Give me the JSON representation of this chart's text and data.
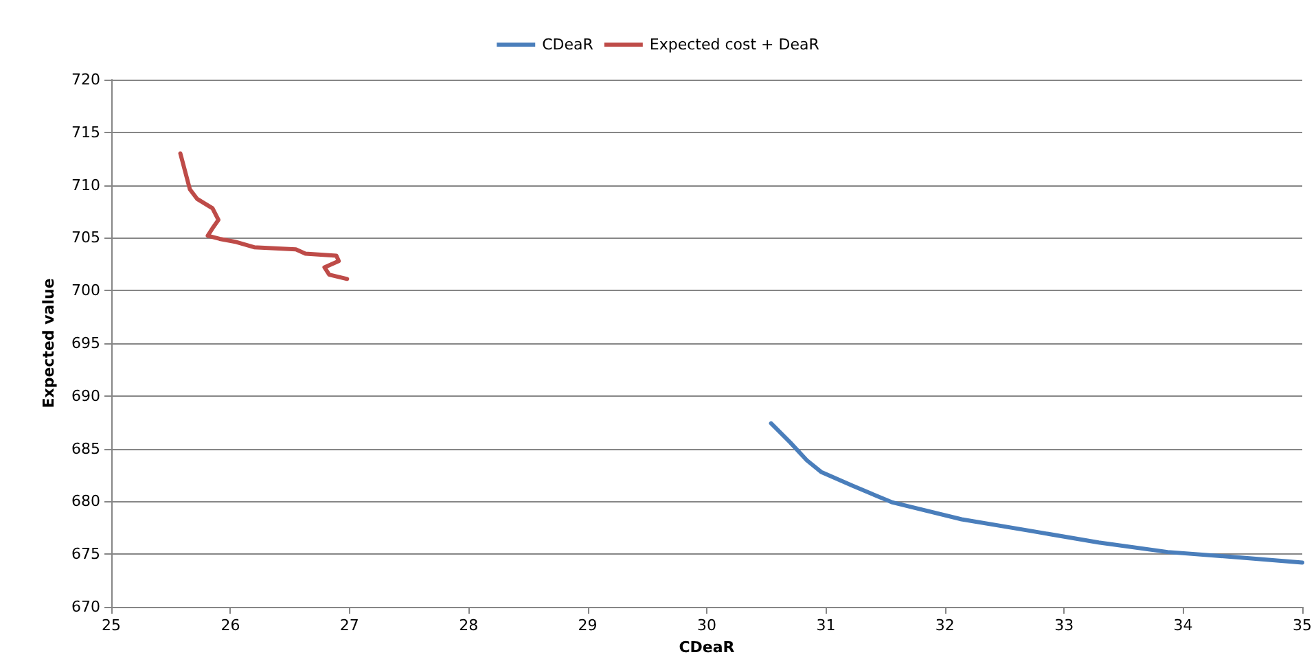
{
  "chart_data": {
    "type": "line",
    "xlabel": "CDeaR",
    "ylabel": "Expected value",
    "legend": "top",
    "grid": "y",
    "marker": "none",
    "line_style": "solid",
    "xlim": [
      25,
      35
    ],
    "xticks": [
      25,
      26,
      27,
      28,
      29,
      30,
      31,
      32,
      33,
      34,
      35
    ],
    "ylim": [
      670,
      720
    ],
    "yticks": [
      670,
      675,
      680,
      685,
      690,
      695,
      700,
      705,
      710,
      715,
      720
    ],
    "series": [
      {
        "name": "CDeaR",
        "color": "#4a7ebb",
        "x": [
          30.54,
          30.7,
          30.84,
          30.96,
          31.22,
          31.56,
          32.14,
          32.72,
          33.29,
          33.87,
          34.45,
          35.0
        ],
        "values": [
          687.4,
          685.6,
          683.9,
          682.8,
          681.5,
          679.9,
          678.3,
          677.2,
          676.1,
          675.2,
          674.7,
          674.2
        ]
      },
      {
        "name": "Expected cost + DeaR",
        "color": "#be4b48",
        "x": [
          25.58,
          25.66,
          25.72,
          25.85,
          25.9,
          25.85,
          25.81,
          25.91,
          26.05,
          26.2,
          26.55,
          26.63,
          26.89,
          26.91,
          26.79,
          26.83,
          26.98
        ],
        "values": [
          713.0,
          709.6,
          708.7,
          707.8,
          706.7,
          705.9,
          705.2,
          704.9,
          704.6,
          704.1,
          703.9,
          703.5,
          703.3,
          702.8,
          702.2,
          701.5,
          701.1
        ]
      }
    ]
  }
}
